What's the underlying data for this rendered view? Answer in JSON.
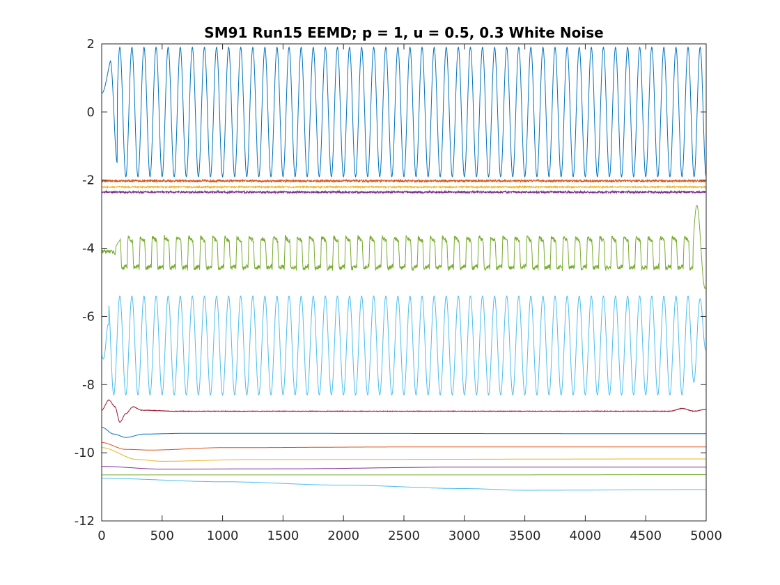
{
  "chart_data": {
    "type": "line",
    "title": "SM91 Run15 EEMD; p = 1, u = 0.5, 0.3 White Noise",
    "xlabel": "",
    "ylabel": "",
    "xlim": [
      0,
      5000
    ],
    "ylim": [
      -12,
      2
    ],
    "x_ticks": [
      0,
      500,
      1000,
      1500,
      2000,
      2500,
      3000,
      3500,
      4000,
      4500,
      5000
    ],
    "x_tick_labels": [
      "0",
      "500",
      "1000",
      "1500",
      "2000",
      "2500",
      "3000",
      "3500",
      "4000",
      "4500",
      "5000"
    ],
    "y_ticks": [
      2,
      0,
      -2,
      -4,
      -6,
      -8,
      -10,
      -12
    ],
    "y_tick_labels": [
      "2",
      "0",
      "-2",
      "-4",
      "-6",
      "-8",
      "-10",
      "-12"
    ],
    "grid": false,
    "series": [
      {
        "color": "#0072BD",
        "offset": 0,
        "shape": "sine",
        "amplitude": 1.9,
        "period": 100,
        "start_level": 0.55,
        "transient_end": 130
      },
      {
        "color": "#D95319",
        "offset": -2.02,
        "shape": "noise",
        "amplitude": 0.03
      },
      {
        "color": "#EDB120",
        "offset": -2.2,
        "shape": "noise",
        "amplitude": 0.02
      },
      {
        "color": "#7E2F8E",
        "offset": -2.35,
        "shape": "noise",
        "amplitude": 0.03
      },
      {
        "color": "#77AC30",
        "offset": -4.1,
        "shape": "square",
        "amplitude": 0.5,
        "period": 100
      },
      {
        "color": "#4DBEEE",
        "offset": -6.85,
        "shape": "sine",
        "amplitude": 1.45,
        "period": 100
      },
      {
        "color": "#A2142F",
        "offset": -8.78,
        "shape": "transient",
        "points": [
          [
            0,
            -8.75
          ],
          [
            60,
            -8.45
          ],
          [
            110,
            -8.65
          ],
          [
            150,
            -9.1
          ],
          [
            200,
            -8.85
          ],
          [
            260,
            -8.65
          ],
          [
            330,
            -8.75
          ],
          [
            600,
            -8.78
          ],
          [
            4700,
            -8.78
          ],
          [
            4800,
            -8.7
          ],
          [
            4900,
            -8.78
          ],
          [
            5000,
            -8.72
          ]
        ]
      },
      {
        "color": "#0072BD",
        "offset": -9.45,
        "shape": "smooth",
        "points": [
          [
            0,
            -9.25
          ],
          [
            100,
            -9.45
          ],
          [
            200,
            -9.55
          ],
          [
            350,
            -9.45
          ],
          [
            700,
            -9.43
          ],
          [
            5000,
            -9.44
          ]
        ]
      },
      {
        "color": "#D95319",
        "offset": -9.85,
        "shape": "smooth",
        "points": [
          [
            0,
            -9.7
          ],
          [
            200,
            -9.9
          ],
          [
            400,
            -9.92
          ],
          [
            1000,
            -9.85
          ],
          [
            2500,
            -9.83
          ],
          [
            5000,
            -9.83
          ]
        ]
      },
      {
        "color": "#EDB120",
        "offset": -10.2,
        "shape": "smooth",
        "points": [
          [
            0,
            -9.85
          ],
          [
            300,
            -10.2
          ],
          [
            500,
            -10.25
          ],
          [
            1200,
            -10.2
          ],
          [
            5000,
            -10.18
          ]
        ]
      },
      {
        "color": "#7E2F8E",
        "offset": -10.45,
        "shape": "smooth",
        "points": [
          [
            0,
            -10.4
          ],
          [
            500,
            -10.48
          ],
          [
            1500,
            -10.47
          ],
          [
            3000,
            -10.42
          ],
          [
            5000,
            -10.42
          ]
        ]
      },
      {
        "color": "#77AC30",
        "offset": -10.65,
        "shape": "smooth",
        "points": [
          [
            0,
            -10.65
          ],
          [
            1000,
            -10.65
          ],
          [
            3000,
            -10.65
          ],
          [
            5000,
            -10.64
          ]
        ]
      },
      {
        "color": "#4DBEEE",
        "offset": -10.9,
        "shape": "smooth",
        "points": [
          [
            0,
            -10.75
          ],
          [
            1000,
            -10.85
          ],
          [
            2000,
            -10.95
          ],
          [
            3000,
            -11.05
          ],
          [
            3500,
            -11.1
          ],
          [
            5000,
            -11.08
          ]
        ]
      }
    ]
  }
}
